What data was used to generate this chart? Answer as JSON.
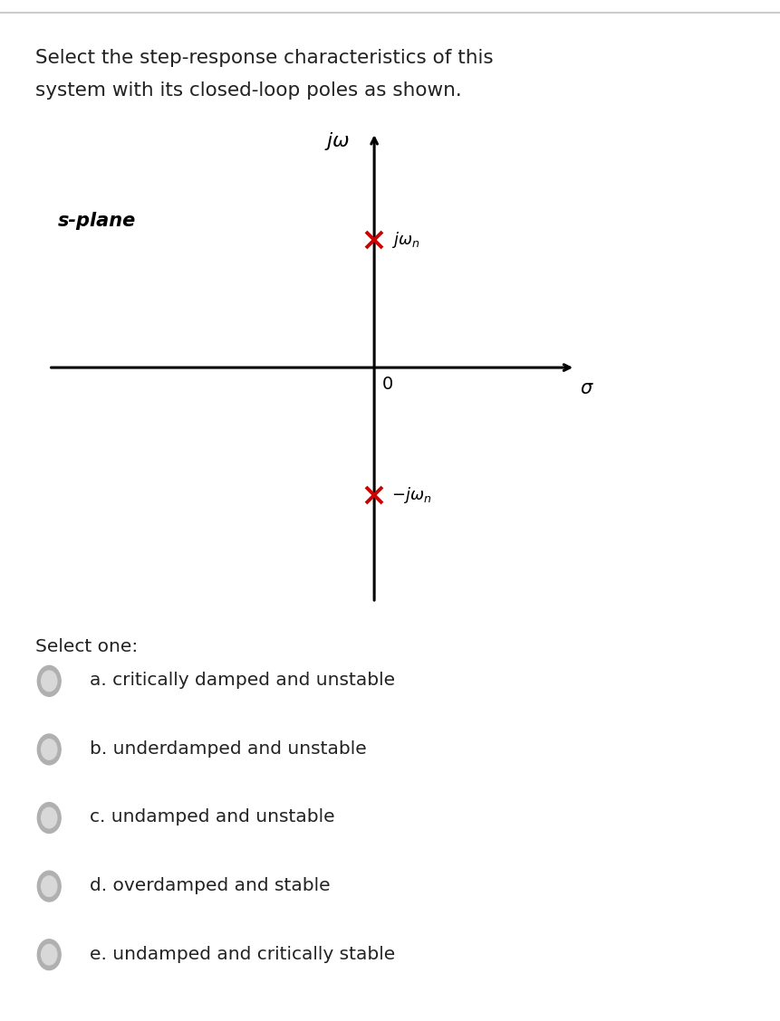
{
  "title_line1": "Select the step-response characteristics of this",
  "title_line2": "system with its closed-loop poles as shown.",
  "bg_color": "#ffffff",
  "axis_color": "#000000",
  "pole_color": "#cc0000",
  "jw_label": "$j\\omega$",
  "sigma_label": "$\\sigma$",
  "zero_label": "0",
  "splane_label": "s-plane",
  "pole_top_label": "$j\\omega_n$",
  "pole_bottom_label": "$-j\\omega_n$",
  "select_one_text": "Select one:",
  "options": [
    "a. critically damped and unstable",
    "b. underdamped and unstable",
    "c. undamped and unstable",
    "d. overdamped and stable",
    "e. undamped and critically stable"
  ],
  "radio_color_outer": "#b0b0b0",
  "radio_color_inner": "#d8d8d8",
  "text_color": "#222222",
  "top_border_color": "#cccccc",
  "font_size_title": 15.5,
  "font_size_axis": 14,
  "font_size_pole_label": 13,
  "font_size_options": 14.5,
  "font_size_splane": 14,
  "pole_size": 13,
  "pole_lw": 2.8
}
